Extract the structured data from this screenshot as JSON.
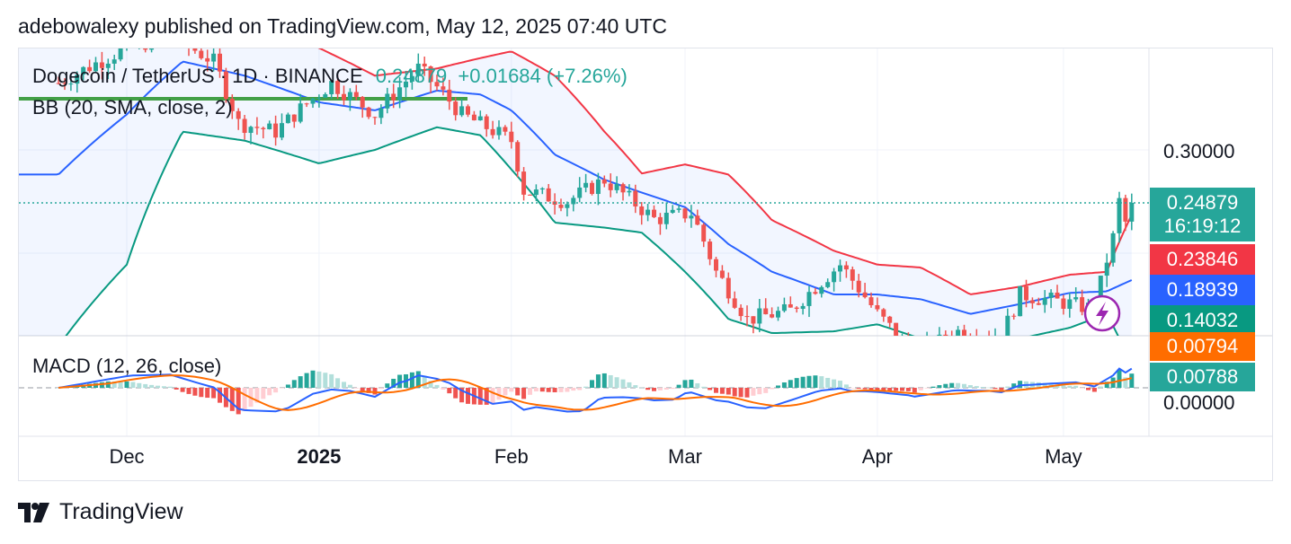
{
  "header": {
    "text": "adebowalexy published on TradingView.com, May 12, 2025 07:40 UTC"
  },
  "legend": {
    "symbol": "Dogecoin / TetherUS · 1D · BINANCE",
    "price": "0.24879",
    "change": "+0.01684 (+7.26%)",
    "bb": "BB (20, SMA, close, 2)",
    "macd": "MACD (12, 26, close)"
  },
  "price_axis": {
    "tick": "0.30000",
    "badges": {
      "last_price": "0.24879",
      "countdown": "16:19:12",
      "bb_upper": "0.23846",
      "bb_basis": "0.18939",
      "bb_lower": "0.14032",
      "macd_signal": "0.00794",
      "macd_line": "0.00788"
    },
    "macd_tick": "0.00000"
  },
  "time_axis": [
    "Dec",
    "2025",
    "Feb",
    "Mar",
    "Apr",
    "May"
  ],
  "footer": {
    "brand": "TradingView"
  },
  "colors": {
    "up": "#26a69a",
    "down": "#ef5350",
    "bb_upper": "#f23645",
    "bb_basis": "#2962ff",
    "bb_lower": "#089981",
    "macd_line": "#2962ff",
    "signal": "#ff6d00"
  },
  "chart_data": {
    "type": "candlestick",
    "symbol": "Dogecoin / TetherUS",
    "interval": "1D",
    "exchange": "BINANCE",
    "ylim": [
      0.12,
      0.38
    ],
    "bb_keypoints": [
      {
        "date": "2024-11-20",
        "upper": 0.44,
        "basis": 0.275,
        "lower": 0.15
      },
      {
        "date": "2024-12-01",
        "upper": 0.46,
        "basis": 0.34,
        "lower": 0.2
      },
      {
        "date": "2024-12-10",
        "upper": 0.48,
        "basis": 0.41,
        "lower": 0.32
      },
      {
        "date": "2024-12-20",
        "upper": 0.48,
        "basis": 0.39,
        "lower": 0.31
      },
      {
        "date": "2025-01-01",
        "upper": 0.43,
        "basis": 0.355,
        "lower": 0.286
      },
      {
        "date": "2025-01-10",
        "upper": 0.39,
        "basis": 0.345,
        "lower": 0.3
      },
      {
        "date": "2025-01-20",
        "upper": 0.4,
        "basis": 0.37,
        "lower": 0.325
      },
      {
        "date": "2025-01-27",
        "upper": 0.415,
        "basis": 0.365,
        "lower": 0.316
      },
      {
        "date": "2025-02-01",
        "upper": 0.425,
        "basis": 0.345,
        "lower": 0.28
      },
      {
        "date": "2025-02-08",
        "upper": 0.39,
        "basis": 0.295,
        "lower": 0.232
      },
      {
        "date": "2025-02-16",
        "upper": 0.32,
        "basis": 0.27,
        "lower": 0.228
      },
      {
        "date": "2025-02-22",
        "upper": 0.276,
        "basis": 0.258,
        "lower": 0.224
      },
      {
        "date": "2025-03-01",
        "upper": 0.285,
        "basis": 0.245,
        "lower": 0.195
      },
      {
        "date": "2025-03-08",
        "upper": 0.275,
        "basis": 0.215,
        "lower": 0.165
      },
      {
        "date": "2025-03-15",
        "upper": 0.234,
        "basis": 0.195,
        "lower": 0.157
      },
      {
        "date": "2025-03-25",
        "upper": 0.21,
        "basis": 0.18,
        "lower": 0.158
      },
      {
        "date": "2025-04-01",
        "upper": 0.2,
        "basis": 0.18,
        "lower": 0.162
      },
      {
        "date": "2025-04-08",
        "upper": 0.198,
        "basis": 0.177,
        "lower": 0.154
      },
      {
        "date": "2025-04-16",
        "upper": 0.18,
        "basis": 0.168,
        "lower": 0.155
      },
      {
        "date": "2025-04-24",
        "upper": 0.185,
        "basis": 0.174,
        "lower": 0.154
      },
      {
        "date": "2025-05-02",
        "upper": 0.193,
        "basis": 0.181,
        "lower": 0.16
      },
      {
        "date": "2025-05-08",
        "upper": 0.195,
        "basis": 0.182,
        "lower": 0.168
      },
      {
        "date": "2025-05-12",
        "upper": 0.23846,
        "basis": 0.18939,
        "lower": 0.14032
      }
    ],
    "price_keypoints": [
      {
        "date": "2024-11-20",
        "close": 0.38
      },
      {
        "date": "2024-12-01",
        "close": 0.43
      },
      {
        "date": "2024-12-08",
        "close": 0.45
      },
      {
        "date": "2024-12-15",
        "close": 0.41
      },
      {
        "date": "2024-12-19",
        "close": 0.33
      },
      {
        "date": "2024-12-25",
        "close": 0.32
      },
      {
        "date": "2025-01-03",
        "close": 0.38
      },
      {
        "date": "2025-01-10",
        "close": 0.34
      },
      {
        "date": "2025-01-17",
        "close": 0.4
      },
      {
        "date": "2025-01-24",
        "close": 0.34
      },
      {
        "date": "2025-02-01",
        "close": 0.31
      },
      {
        "date": "2025-02-03",
        "close": 0.26
      },
      {
        "date": "2025-02-10",
        "close": 0.25
      },
      {
        "date": "2025-02-16",
        "close": 0.27
      },
      {
        "date": "2025-02-24",
        "close": 0.235
      },
      {
        "date": "2025-03-02",
        "close": 0.24
      },
      {
        "date": "2025-03-06",
        "close": 0.195
      },
      {
        "date": "2025-03-11",
        "close": 0.165
      },
      {
        "date": "2025-03-18",
        "close": 0.17
      },
      {
        "date": "2025-03-26",
        "close": 0.2
      },
      {
        "date": "2025-04-01",
        "close": 0.168
      },
      {
        "date": "2025-04-07",
        "close": 0.145
      },
      {
        "date": "2025-04-14",
        "close": 0.158
      },
      {
        "date": "2025-04-21",
        "close": 0.155
      },
      {
        "date": "2025-04-24",
        "close": 0.18
      },
      {
        "date": "2025-05-01",
        "close": 0.175
      },
      {
        "date": "2025-05-06",
        "close": 0.171
      },
      {
        "date": "2025-05-09",
        "close": 0.22
      },
      {
        "date": "2025-05-10",
        "close": 0.25
      },
      {
        "date": "2025-05-11",
        "close": 0.232
      },
      {
        "date": "2025-05-12",
        "close": 0.24879
      }
    ],
    "macd": {
      "macd_line_last": 0.00788,
      "signal_last": 0.00794
    }
  }
}
